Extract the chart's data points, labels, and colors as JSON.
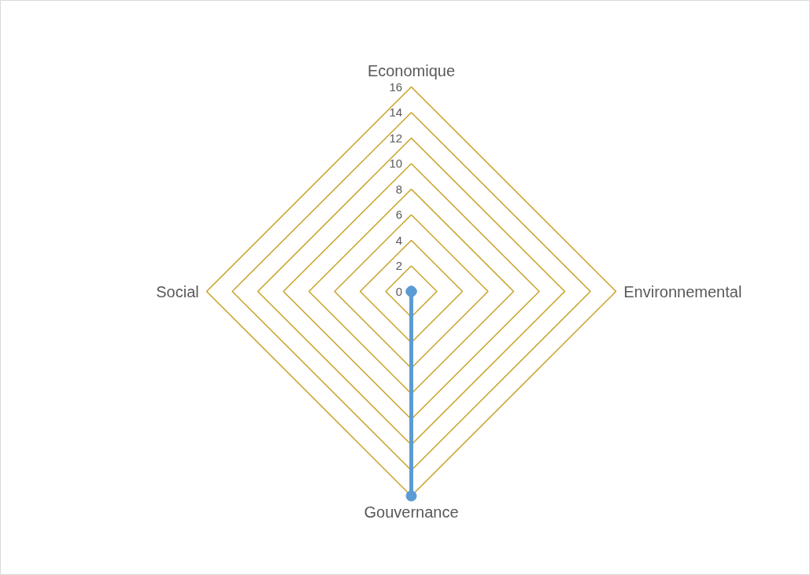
{
  "chart_data": {
    "type": "radar",
    "categories": [
      "Economique",
      "Environnemental",
      "Gouvernance",
      "Social"
    ],
    "series": [
      {
        "color": "#5b9bd5",
        "values": [
          0,
          0,
          16,
          0
        ]
      }
    ],
    "ylim": [
      0,
      16
    ],
    "yticks": [
      0,
      2,
      4,
      6,
      8,
      10,
      12,
      14,
      16
    ],
    "grid": true,
    "marker": "circle"
  }
}
